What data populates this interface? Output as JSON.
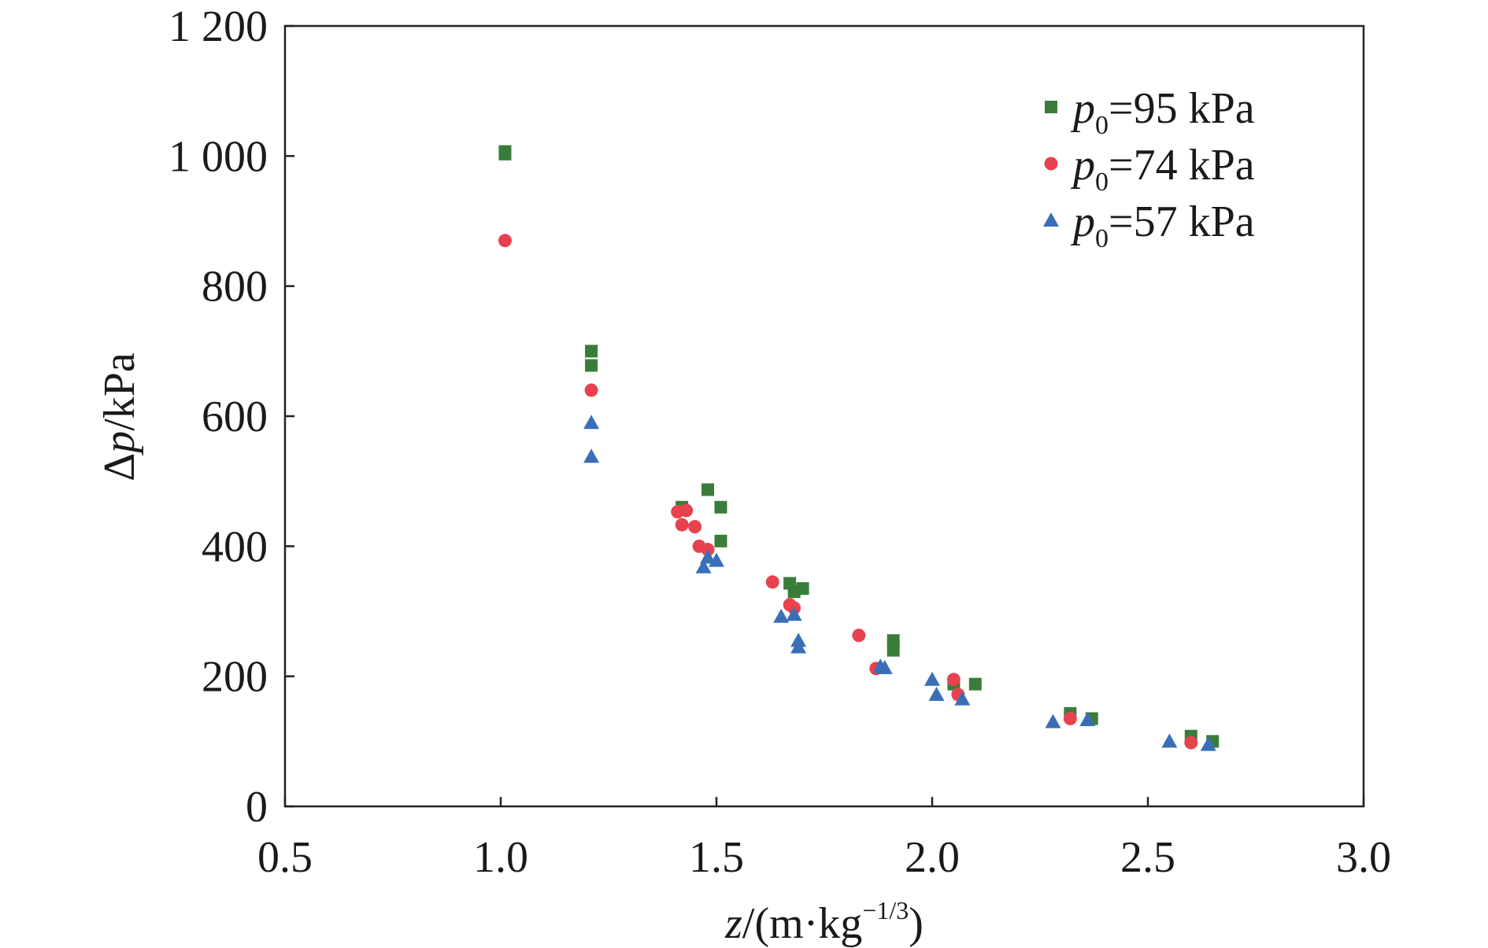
{
  "chart_data": {
    "type": "scatter",
    "title": "",
    "xlabel": {
      "var": "z",
      "rest": "/(m·kg",
      "sup": "−1/3",
      "close": ")"
    },
    "ylabel": {
      "prefix": "Δ",
      "var": "p",
      "rest": "/kPa"
    },
    "xlim": [
      0.5,
      3.0
    ],
    "ylim": [
      0,
      1200
    ],
    "xticks": [
      0.5,
      1.0,
      1.5,
      2.0,
      2.5,
      3.0
    ],
    "xtick_labels": [
      "0.5",
      "1.0",
      "1.5",
      "2.0",
      "2.5",
      "3.0"
    ],
    "yticks": [
      0,
      200,
      400,
      600,
      800,
      1000,
      1200
    ],
    "ytick_labels": [
      "0",
      "200",
      "400",
      "600",
      "800",
      "1 000",
      "1 200"
    ],
    "grid": false,
    "legend_position": "top-right",
    "series": [
      {
        "name": {
          "var": "p",
          "sub": "0",
          "rest": "=95 kPa"
        },
        "marker": "square",
        "color": "#3a7d3a",
        "points": [
          [
            1.01,
            1007
          ],
          [
            1.01,
            1003
          ],
          [
            1.21,
            700
          ],
          [
            1.21,
            678
          ],
          [
            1.42,
            460
          ],
          [
            1.48,
            487
          ],
          [
            1.51,
            460
          ],
          [
            1.51,
            408
          ],
          [
            1.67,
            343
          ],
          [
            1.68,
            330
          ],
          [
            1.7,
            335
          ],
          [
            1.91,
            255
          ],
          [
            1.91,
            240
          ],
          [
            2.05,
            188
          ],
          [
            2.1,
            188
          ],
          [
            2.32,
            143
          ],
          [
            2.37,
            135
          ],
          [
            2.6,
            108
          ],
          [
            2.65,
            100
          ]
        ]
      },
      {
        "name": {
          "var": "p",
          "sub": "0",
          "rest": "=74 kPa"
        },
        "marker": "circle",
        "color": "#e8424f",
        "points": [
          [
            1.01,
            870
          ],
          [
            1.21,
            640
          ],
          [
            1.41,
            453
          ],
          [
            1.42,
            433
          ],
          [
            1.43,
            455
          ],
          [
            1.45,
            430
          ],
          [
            1.46,
            400
          ],
          [
            1.48,
            395
          ],
          [
            1.63,
            345
          ],
          [
            1.67,
            310
          ],
          [
            1.68,
            305
          ],
          [
            1.83,
            263
          ],
          [
            1.87,
            212
          ],
          [
            2.05,
            195
          ],
          [
            2.06,
            172
          ],
          [
            2.32,
            135
          ],
          [
            2.6,
            98
          ]
        ]
      },
      {
        "name": {
          "var": "p",
          "sub": "0",
          "rest": "=57 kPa"
        },
        "marker": "triangle",
        "color": "#3a6fb8",
        "points": [
          [
            1.21,
            590
          ],
          [
            1.21,
            538
          ],
          [
            1.47,
            368
          ],
          [
            1.48,
            383
          ],
          [
            1.5,
            378
          ],
          [
            1.65,
            292
          ],
          [
            1.68,
            295
          ],
          [
            1.69,
            255
          ],
          [
            1.69,
            245
          ],
          [
            1.88,
            215
          ],
          [
            1.89,
            213
          ],
          [
            2.0,
            195
          ],
          [
            2.01,
            172
          ],
          [
            2.07,
            165
          ],
          [
            2.28,
            130
          ],
          [
            2.36,
            133
          ],
          [
            2.55,
            100
          ],
          [
            2.64,
            95
          ]
        ]
      }
    ]
  }
}
